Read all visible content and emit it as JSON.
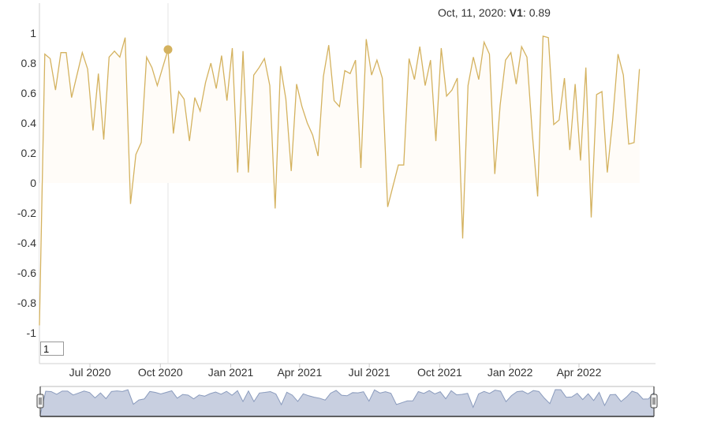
{
  "colors": {
    "series": "#d4b25f",
    "area": "#fffcf8",
    "navigator_line": "#8a9bbd",
    "navigator_fill": "#c8cfe0"
  },
  "tooltip": {
    "date": "Oct, 11, 2020:",
    "series": "V1",
    "sep": ":",
    "value": "0.89"
  },
  "input_box": {
    "value": "1"
  },
  "chart_data": {
    "type": "area",
    "title": "",
    "xlabel": "",
    "ylabel": "",
    "ylim": [
      -1.1,
      1.1
    ],
    "yticks": [
      "1",
      "0.8",
      "0.6",
      "0.4",
      "0.2",
      "0",
      "-0.2",
      "-0.4",
      "-0.6",
      "-0.8",
      "-1"
    ],
    "xticks": [
      {
        "date": "2020-07-01",
        "label": "Jul 2020"
      },
      {
        "date": "2020-10-01",
        "label": "Oct 2020"
      },
      {
        "date": "2021-01-01",
        "label": "Jan 2021"
      },
      {
        "date": "2021-04-01",
        "label": "Apr 2021"
      },
      {
        "date": "2021-07-01",
        "label": "Jul 2021"
      },
      {
        "date": "2021-10-01",
        "label": "Oct 2021"
      },
      {
        "date": "2022-01-01",
        "label": "Jan 2022"
      },
      {
        "date": "2022-04-01",
        "label": "Apr 2022"
      }
    ],
    "x_range": [
      "2020-04-26",
      "2022-07-10"
    ],
    "highlight": {
      "date": "2020-10-11",
      "value": 0.89
    },
    "series": [
      {
        "name": "V1",
        "points": [
          [
            "2020-04-26",
            -0.95
          ],
          [
            "2020-05-03",
            0.86
          ],
          [
            "2020-05-10",
            0.83
          ],
          [
            "2020-05-17",
            0.62
          ],
          [
            "2020-05-24",
            0.87
          ],
          [
            "2020-05-31",
            0.87
          ],
          [
            "2020-06-07",
            0.57
          ],
          [
            "2020-06-14",
            0.72
          ],
          [
            "2020-06-21",
            0.87
          ],
          [
            "2020-06-28",
            0.76
          ],
          [
            "2020-07-05",
            0.35
          ],
          [
            "2020-07-12",
            0.73
          ],
          [
            "2020-07-19",
            0.29
          ],
          [
            "2020-07-26",
            0.84
          ],
          [
            "2020-08-02",
            0.88
          ],
          [
            "2020-08-09",
            0.84
          ],
          [
            "2020-08-16",
            0.97
          ],
          [
            "2020-08-23",
            -0.14
          ],
          [
            "2020-08-30",
            0.19
          ],
          [
            "2020-09-06",
            0.27
          ],
          [
            "2020-09-13",
            0.84
          ],
          [
            "2020-09-20",
            0.77
          ],
          [
            "2020-09-27",
            0.65
          ],
          [
            "2020-10-04",
            0.77
          ],
          [
            "2020-10-11",
            0.89
          ],
          [
            "2020-10-18",
            0.33
          ],
          [
            "2020-10-25",
            0.61
          ],
          [
            "2020-11-01",
            0.56
          ],
          [
            "2020-11-08",
            0.28
          ],
          [
            "2020-11-15",
            0.57
          ],
          [
            "2020-11-22",
            0.48
          ],
          [
            "2020-11-29",
            0.67
          ],
          [
            "2020-12-06",
            0.8
          ],
          [
            "2020-12-13",
            0.63
          ],
          [
            "2020-12-20",
            0.85
          ],
          [
            "2020-12-27",
            0.55
          ],
          [
            "2021-01-03",
            0.9
          ],
          [
            "2021-01-10",
            0.07
          ],
          [
            "2021-01-17",
            0.88
          ],
          [
            "2021-01-24",
            0.07
          ],
          [
            "2021-01-31",
            0.72
          ],
          [
            "2021-02-07",
            0.77
          ],
          [
            "2021-02-14",
            0.83
          ],
          [
            "2021-02-21",
            0.65
          ],
          [
            "2021-02-28",
            -0.17
          ],
          [
            "2021-03-07",
            0.78
          ],
          [
            "2021-03-14",
            0.56
          ],
          [
            "2021-03-21",
            0.08
          ],
          [
            "2021-03-28",
            0.66
          ],
          [
            "2021-04-04",
            0.51
          ],
          [
            "2021-04-11",
            0.4
          ],
          [
            "2021-04-18",
            0.32
          ],
          [
            "2021-04-25",
            0.18
          ],
          [
            "2021-05-02",
            0.71
          ],
          [
            "2021-05-09",
            0.92
          ],
          [
            "2021-05-16",
            0.55
          ],
          [
            "2021-05-23",
            0.51
          ],
          [
            "2021-05-30",
            0.75
          ],
          [
            "2021-06-06",
            0.73
          ],
          [
            "2021-06-13",
            0.82
          ],
          [
            "2021-06-20",
            0.1
          ],
          [
            "2021-06-27",
            0.96
          ],
          [
            "2021-07-04",
            0.72
          ],
          [
            "2021-07-11",
            0.82
          ],
          [
            "2021-07-18",
            0.7
          ],
          [
            "2021-07-25",
            -0.16
          ],
          [
            "2021-08-01",
            -0.02
          ],
          [
            "2021-08-08",
            0.12
          ],
          [
            "2021-08-15",
            0.12
          ],
          [
            "2021-08-22",
            0.83
          ],
          [
            "2021-08-29",
            0.69
          ],
          [
            "2021-09-05",
            0.91
          ],
          [
            "2021-09-12",
            0.65
          ],
          [
            "2021-09-19",
            0.82
          ],
          [
            "2021-09-26",
            0.28
          ],
          [
            "2021-10-03",
            0.9
          ],
          [
            "2021-10-10",
            0.58
          ],
          [
            "2021-10-17",
            0.62
          ],
          [
            "2021-10-24",
            0.7
          ],
          [
            "2021-10-31",
            -0.37
          ],
          [
            "2021-11-07",
            0.65
          ],
          [
            "2021-11-14",
            0.84
          ],
          [
            "2021-11-21",
            0.69
          ],
          [
            "2021-11-28",
            0.94
          ],
          [
            "2021-12-05",
            0.86
          ],
          [
            "2021-12-12",
            0.06
          ],
          [
            "2021-12-19",
            0.52
          ],
          [
            "2021-12-26",
            0.82
          ],
          [
            "2022-01-02",
            0.87
          ],
          [
            "2022-01-09",
            0.66
          ],
          [
            "2022-01-16",
            0.91
          ],
          [
            "2022-01-23",
            0.84
          ],
          [
            "2022-01-30",
            0.33
          ],
          [
            "2022-02-06",
            -0.09
          ],
          [
            "2022-02-13",
            0.98
          ],
          [
            "2022-02-20",
            0.97
          ],
          [
            "2022-02-27",
            0.39
          ],
          [
            "2022-03-06",
            0.42
          ],
          [
            "2022-03-13",
            0.7
          ],
          [
            "2022-03-20",
            0.22
          ],
          [
            "2022-03-27",
            0.66
          ],
          [
            "2022-04-03",
            0.15
          ],
          [
            "2022-04-10",
            0.77
          ],
          [
            "2022-04-17",
            -0.23
          ],
          [
            "2022-04-24",
            0.59
          ],
          [
            "2022-05-01",
            0.61
          ],
          [
            "2022-05-08",
            0.07
          ],
          [
            "2022-05-15",
            0.42
          ],
          [
            "2022-05-22",
            0.86
          ],
          [
            "2022-05-29",
            0.72
          ],
          [
            "2022-06-05",
            0.26
          ],
          [
            "2022-06-12",
            0.27
          ],
          [
            "2022-06-19",
            0.76
          ]
        ]
      }
    ]
  }
}
